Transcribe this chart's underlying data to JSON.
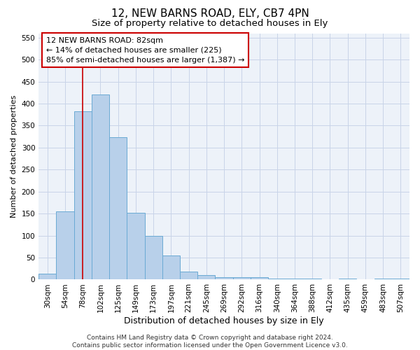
{
  "title": "12, NEW BARNS ROAD, ELY, CB7 4PN",
  "subtitle": "Size of property relative to detached houses in Ely",
  "xlabel": "Distribution of detached houses by size in Ely",
  "ylabel": "Number of detached properties",
  "categories": [
    "30sqm",
    "54sqm",
    "78sqm",
    "102sqm",
    "125sqm",
    "149sqm",
    "173sqm",
    "197sqm",
    "221sqm",
    "245sqm",
    "269sqm",
    "292sqm",
    "316sqm",
    "340sqm",
    "364sqm",
    "388sqm",
    "412sqm",
    "435sqm",
    "459sqm",
    "483sqm",
    "507sqm"
  ],
  "values": [
    13,
    155,
    383,
    420,
    323,
    152,
    100,
    55,
    19,
    10,
    5,
    5,
    5,
    2,
    2,
    2,
    0,
    2,
    0,
    2,
    2
  ],
  "bar_color": "#b8d0ea",
  "bar_edge_color": "#6aaad4",
  "property_line_x": 2,
  "annotation_text_line1": "12 NEW BARNS ROAD: 82sqm",
  "annotation_text_line2": "← 14% of detached houses are smaller (225)",
  "annotation_text_line3": "85% of semi-detached houses are larger (1,387) →",
  "annotation_box_color": "#ffffff",
  "annotation_box_edge_color": "#cc0000",
  "vline_color": "#cc0000",
  "grid_color": "#c8d4e8",
  "background_color": "#ffffff",
  "plot_background_color": "#edf2f9",
  "ylim": [
    0,
    560
  ],
  "yticks": [
    0,
    50,
    100,
    150,
    200,
    250,
    300,
    350,
    400,
    450,
    500,
    550
  ],
  "footer_text": "Contains HM Land Registry data © Crown copyright and database right 2024.\nContains public sector information licensed under the Open Government Licence v3.0.",
  "title_fontsize": 11,
  "subtitle_fontsize": 9.5,
  "xlabel_fontsize": 9,
  "ylabel_fontsize": 8,
  "tick_fontsize": 7.5,
  "annotation_fontsize": 8,
  "footer_fontsize": 6.5
}
